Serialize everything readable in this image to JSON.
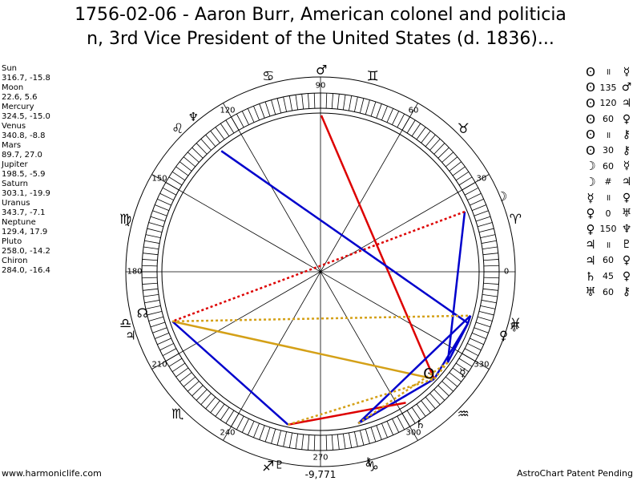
{
  "header": {
    "title_line1": "1756-02-06 - Aaron Burr, American colonel and politicia",
    "title_line2": "n, 3rd Vice President of the United States (d. 1836)..."
  },
  "planets": [
    {
      "name": "Sun",
      "coords": "316.7, -15.8"
    },
    {
      "name": "Moon",
      "coords": "22.6, 5.6"
    },
    {
      "name": "Mercury",
      "coords": "324.5, -15.0"
    },
    {
      "name": "Venus",
      "coords": "340.8, -8.8"
    },
    {
      "name": "Mars",
      "coords": "89.7, 27.0"
    },
    {
      "name": "Jupiter",
      "coords": "198.5, -5.9"
    },
    {
      "name": "Saturn",
      "coords": "303.1, -19.9"
    },
    {
      "name": "Uranus",
      "coords": "343.7, -7.1"
    },
    {
      "name": "Neptune",
      "coords": "129.4, 17.9"
    },
    {
      "name": "Pluto",
      "coords": "258.0, -14.2"
    },
    {
      "name": "Chiron",
      "coords": "284.0, -16.4"
    }
  ],
  "aspects": [
    {
      "p1": "ʘ",
      "angle": "॥",
      "p2": "☿"
    },
    {
      "p1": "ʘ",
      "angle": "135",
      "p2": "♂"
    },
    {
      "p1": "ʘ",
      "angle": "120",
      "p2": "♃"
    },
    {
      "p1": "ʘ",
      "angle": "60",
      "p2": "♀"
    },
    {
      "p1": "ʘ",
      "angle": "॥",
      "p2": "⚷"
    },
    {
      "p1": "ʘ",
      "angle": "30",
      "p2": "⚷"
    },
    {
      "p1": "☽",
      "angle": "60",
      "p2": "☿"
    },
    {
      "p1": "☽",
      "angle": "#",
      "p2": "♃"
    },
    {
      "p1": "☿",
      "angle": "॥",
      "p2": "♀"
    },
    {
      "p1": "♀",
      "angle": "0",
      "p2": "♅"
    },
    {
      "p1": "♀",
      "angle": "150",
      "p2": "♆"
    },
    {
      "p1": "♃",
      "angle": "॥",
      "p2": "♇"
    },
    {
      "p1": "♃",
      "angle": "60",
      "p2": "♀"
    },
    {
      "p1": "♄",
      "angle": "45",
      "p2": "♀"
    },
    {
      "p1": "♅",
      "angle": "60",
      "p2": "⚷"
    }
  ],
  "wheel": {
    "degree_labels": [
      "0",
      "30",
      "60",
      "90",
      "120",
      "150",
      "180",
      "210",
      "240",
      "270",
      "300",
      "330"
    ],
    "zodiac_signs": [
      "♈",
      "♉",
      "♊",
      "♋",
      "♌",
      "♍",
      "♎",
      "♏",
      "♐",
      "♑",
      "♒",
      "♓"
    ],
    "bottom_value": "-9,771"
  },
  "chart_glyphs": {
    "sun": "ʘ",
    "moon": "☽",
    "mercury": "☿",
    "venus": "♀",
    "mars": "♂",
    "jupiter": "♃",
    "saturn": "♄",
    "uranus": "♅",
    "neptune": "♆",
    "pluto": "♇",
    "chiron": "⚷",
    "node": "☊"
  },
  "colors": {
    "ring": "#000000",
    "aspect_blue": "#0000cc",
    "aspect_red": "#dd0000",
    "aspect_gold": "#d4a017",
    "spoke": "#000000"
  },
  "footer": {
    "left": "www.harmoniclife.com",
    "right": "AstroChart Patent Pending"
  }
}
